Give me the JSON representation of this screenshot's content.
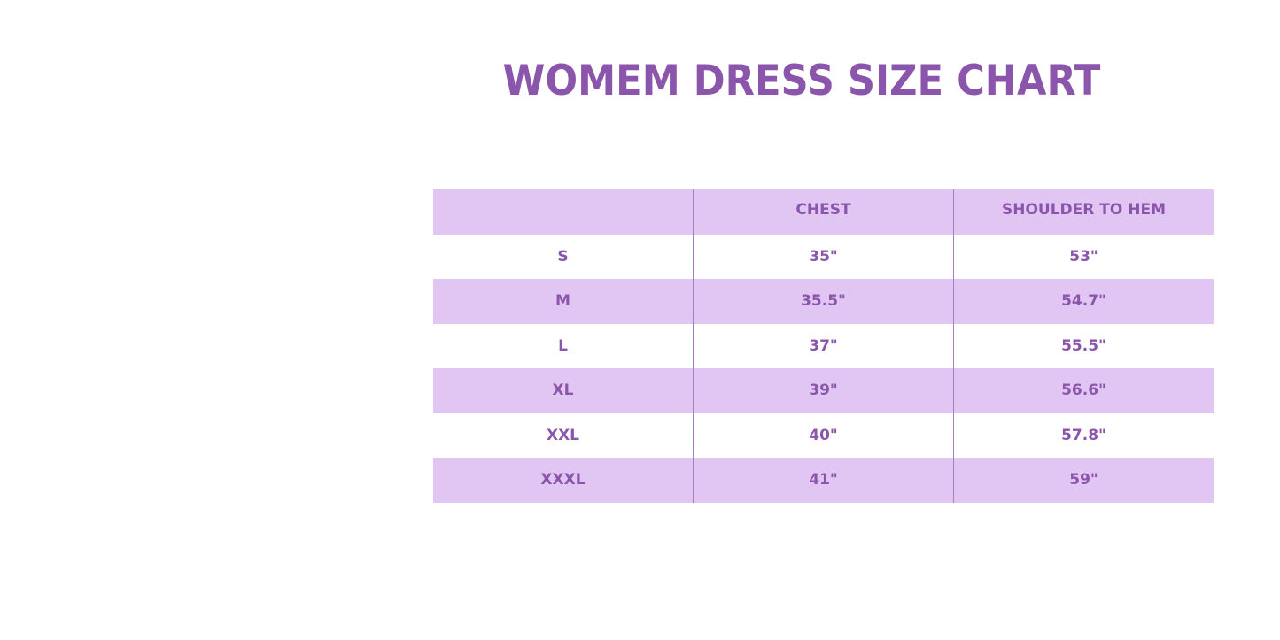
{
  "title": "WOMEM DRESS SIZE CHART",
  "colors": {
    "accent": "#8a55aa",
    "band": "#e1c6f4"
  },
  "table": {
    "headers": [
      "",
      "CHEST",
      "SHOULDER TO HEM"
    ],
    "rows": [
      [
        "S",
        "35\"",
        "53\""
      ],
      [
        "M",
        "35.5\"",
        "54.7\""
      ],
      [
        "L",
        "37\"",
        "55.5\""
      ],
      [
        "XL",
        "39\"",
        "56.6\""
      ],
      [
        "XXL",
        "40\"",
        "57.8\""
      ],
      [
        "XXXL",
        "41\"",
        "59\""
      ]
    ]
  }
}
